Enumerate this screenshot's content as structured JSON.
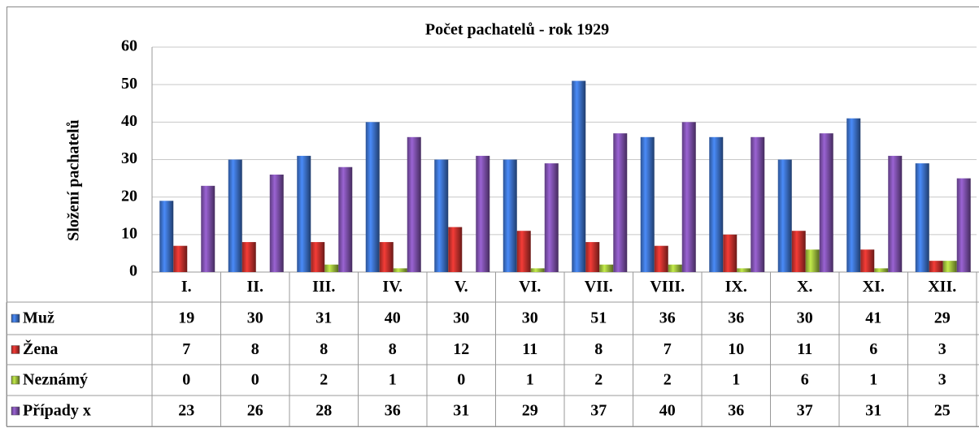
{
  "chart_data": {
    "type": "bar",
    "title": "Počet pachatelů - rok 1929",
    "y_label": "Složení  pachatelů",
    "categories": [
      "I.",
      "II.",
      "III.",
      "IV.",
      "V.",
      "VI.",
      "VII.",
      "VIII.",
      "IX.",
      "X.",
      "XI.",
      "XII."
    ],
    "series": [
      {
        "name": "Muž",
        "color": "#3b6fc6",
        "values": [
          19,
          30,
          31,
          40,
          30,
          30,
          51,
          36,
          36,
          30,
          41,
          29
        ]
      },
      {
        "name": "Žena",
        "color": "#c3302c",
        "values": [
          7,
          8,
          8,
          8,
          12,
          11,
          8,
          7,
          10,
          11,
          6,
          3
        ]
      },
      {
        "name": "Neznámý",
        "color": "#9cbc3c",
        "values": [
          0,
          0,
          2,
          1,
          0,
          1,
          2,
          2,
          1,
          6,
          1,
          3
        ]
      },
      {
        "name": "Případy x",
        "color": "#7b4fa9",
        "values": [
          23,
          26,
          28,
          36,
          31,
          29,
          37,
          40,
          36,
          37,
          31,
          25
        ]
      }
    ],
    "ylim": [
      0,
      60
    ],
    "yticks": [
      0,
      10,
      20,
      30,
      40,
      50,
      60
    ],
    "grid": true
  }
}
